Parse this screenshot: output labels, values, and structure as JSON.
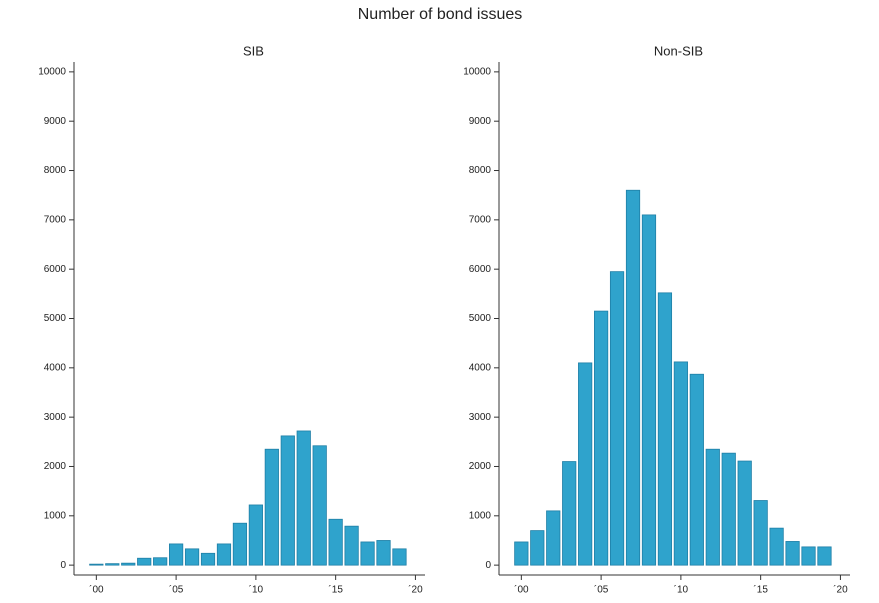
{
  "title": "Number of bond issues",
  "chart_data": [
    {
      "type": "bar",
      "title": "SIB",
      "color": "#2fa3cc",
      "x": [
        0,
        1,
        2,
        3,
        4,
        5,
        6,
        7,
        8,
        9,
        10,
        11,
        12,
        13,
        14,
        15,
        16,
        17,
        18,
        19
      ],
      "values": [
        20,
        30,
        40,
        140,
        150,
        430,
        330,
        240,
        430,
        850,
        1220,
        2350,
        2620,
        2720,
        2420,
        930,
        790,
        470,
        500,
        330
      ],
      "xlim": [
        -1.4,
        20.6
      ],
      "ylim": [
        -200,
        10200
      ],
      "xticks": [
        {
          "value": 0,
          "label": "´00"
        },
        {
          "value": 5,
          "label": "´05"
        },
        {
          "value": 10,
          "label": "´10"
        },
        {
          "value": 15,
          "label": "´15"
        },
        {
          "value": 20,
          "label": "´20"
        }
      ],
      "yticks": [
        0,
        1000,
        2000,
        3000,
        4000,
        5000,
        6000,
        7000,
        8000,
        9000,
        10000
      ]
    },
    {
      "type": "bar",
      "title": "Non-SIB",
      "color": "#2fa3cc",
      "x": [
        0,
        1,
        2,
        3,
        4,
        5,
        6,
        7,
        8,
        9,
        10,
        11,
        12,
        13,
        14,
        15,
        16,
        17,
        18,
        19
      ],
      "values": [
        470,
        700,
        1100,
        2100,
        4100,
        5150,
        5950,
        7600,
        7100,
        5520,
        4120,
        3870,
        2350,
        2270,
        2110,
        1310,
        750,
        480,
        370,
        370
      ],
      "xlim": [
        -1.4,
        20.6
      ],
      "ylim": [
        -200,
        10200
      ],
      "xticks": [
        {
          "value": 0,
          "label": "´00"
        },
        {
          "value": 5,
          "label": "´05"
        },
        {
          "value": 10,
          "label": "´10"
        },
        {
          "value": 15,
          "label": "´15"
        },
        {
          "value": 20,
          "label": "´20"
        }
      ],
      "yticks": [
        0,
        1000,
        2000,
        3000,
        4000,
        5000,
        6000,
        7000,
        8000,
        9000,
        10000
      ]
    }
  ]
}
